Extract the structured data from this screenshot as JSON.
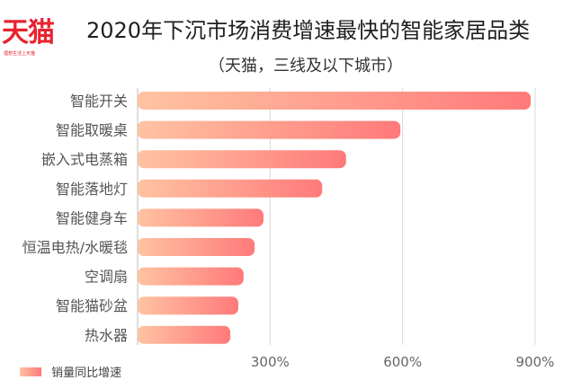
{
  "logo": {
    "text": "天猫",
    "slogan": "理想生活上天猫"
  },
  "chart_data": {
    "type": "bar",
    "orientation": "horizontal",
    "title": "2020年下沉市场消费增速最快的智能家居品类",
    "subtitle": "（天猫，三线及以下城市）",
    "categories": [
      "智能开关",
      "智能取暖桌",
      "嵌入式电蒸箱",
      "智能落地灯",
      "智能健身车",
      "恒温电热/水暖毯",
      "空调扇",
      "智能猫砂盆",
      "热水器"
    ],
    "series": [
      {
        "name": "销量同比增速",
        "values": [
          890,
          595,
          472,
          418,
          285,
          265,
          240,
          228,
          210
        ]
      }
    ],
    "xlim": [
      0,
      900
    ],
    "x_ticks": [
      300,
      600,
      900
    ],
    "x_tick_labels": [
      "300%",
      "600%",
      "900%"
    ],
    "grid": true,
    "legend_position": "bottom-left",
    "colors": {
      "bar_start": "#ffc3a2",
      "bar_end": "#ff7a7a",
      "grid": "#d8d8d8",
      "logo": "#e8232f"
    }
  }
}
